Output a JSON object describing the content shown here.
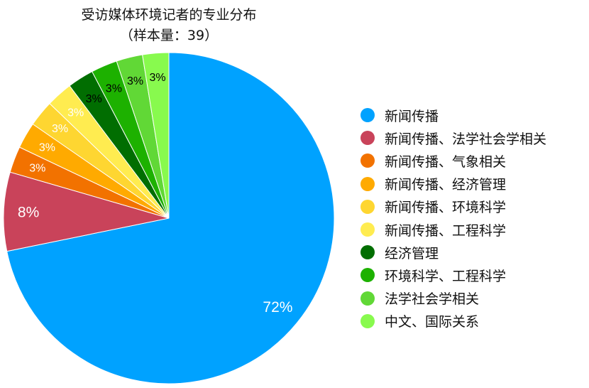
{
  "chart_data": {
    "type": "pie",
    "title": "受访媒体环境记者的专业分布",
    "subtitle": "（样本量：39）",
    "sample_size": 39,
    "start_angle": "top",
    "direction": "clockwise",
    "legend_position": "right",
    "slices": [
      {
        "name": "新闻传播",
        "count": 28,
        "label": "72%",
        "color": "#00A2FF",
        "label_color": "#FFFFFF"
      },
      {
        "name": "新闻传播、法学社会学相关",
        "count": 3,
        "label": "8%",
        "color": "#C9435A",
        "label_color": "#FFFFFF"
      },
      {
        "name": "新闻传播、气象相关",
        "count": 1,
        "label": "3%",
        "color": "#F27200",
        "label_color": "#FFFFFF"
      },
      {
        "name": "新闻传播、经济管理",
        "count": 1,
        "label": "3%",
        "color": "#FFAA00",
        "label_color": "#FFFFFF"
      },
      {
        "name": "新闻传播、环境科学",
        "count": 1,
        "label": "3%",
        "color": "#FED631",
        "label_color": "#FFFFFF"
      },
      {
        "name": "新闻传播、工程科学",
        "count": 1,
        "label": "3%",
        "color": "#FFEC50",
        "label_color": "#FFFFFF"
      },
      {
        "name": "经济管理",
        "count": 1,
        "label": "3%",
        "color": "#016E01",
        "label_color": "#000000"
      },
      {
        "name": "环境科学、工程科学",
        "count": 1,
        "label": "3%",
        "color": "#1DB100",
        "label_color": "#000000"
      },
      {
        "name": "法学社会学相关",
        "count": 1,
        "label": "3%",
        "color": "#61D836",
        "label_color": "#000000"
      },
      {
        "name": "中文、国际关系",
        "count": 1,
        "label": "3%",
        "color": "#88FA4E",
        "label_color": "#000000"
      }
    ]
  }
}
